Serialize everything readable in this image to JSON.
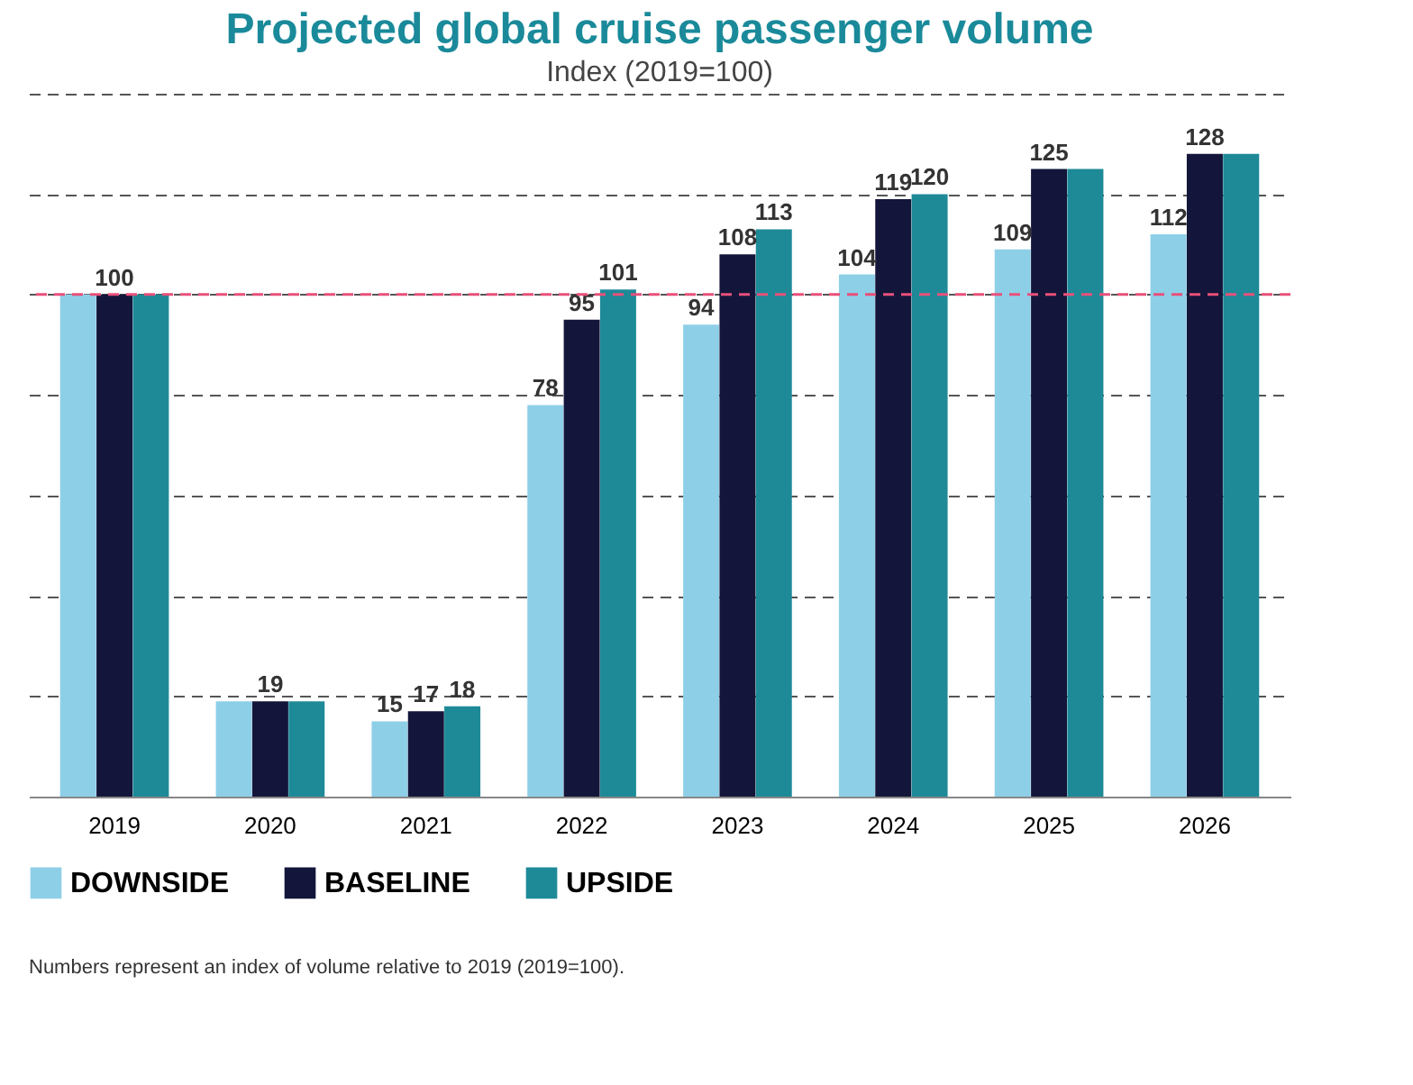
{
  "chart_data": {
    "type": "bar",
    "title": "Projected global cruise passenger volume",
    "subtitle": "Index (2019=100)",
    "categories": [
      "2019",
      "2020",
      "2021",
      "2022",
      "2023",
      "2024",
      "2025",
      "2026"
    ],
    "series": [
      {
        "name": "DOWNSIDE",
        "color": "#8ecfe8",
        "values": [
          100,
          19,
          15,
          78,
          94,
          104,
          109,
          112
        ],
        "value_labels": [
          null,
          null,
          "15",
          "78",
          "94",
          "104",
          "109",
          "112"
        ]
      },
      {
        "name": "BASELINE",
        "color": "#13163a",
        "values": [
          100,
          19,
          17,
          95,
          108,
          119,
          125,
          128
        ],
        "value_labels": [
          "100",
          "19",
          "17",
          "95",
          "108",
          "119",
          "125",
          "128"
        ]
      },
      {
        "name": "UPSIDE",
        "color": "#1e8a98",
        "values": [
          100,
          19,
          18,
          101,
          113,
          120,
          125,
          128
        ],
        "value_labels": [
          null,
          null,
          "18",
          "101",
          "113",
          "120",
          null,
          null
        ]
      }
    ],
    "ylim": [
      0,
      140
    ],
    "yticks": [
      {
        "value": 0,
        "label": null
      },
      {
        "value": 20,
        "label": null
      },
      {
        "value": 40,
        "label": null
      },
      {
        "value": 60,
        "label": null
      },
      {
        "value": 80,
        "label": null
      },
      {
        "value": 100,
        "label": null
      },
      {
        "value": 120,
        "label": null
      },
      {
        "value": 140,
        "label": null
      }
    ],
    "ref_lines": [
      {
        "axis": "y",
        "value": 100,
        "label": null,
        "color": "#e8507a",
        "line_style": "dashed"
      }
    ],
    "grid": "y",
    "legend": "bottom",
    "tick_labels": "x",
    "annotations": [
      "Numbers represent an index of volume relative to 2019 (2019=100)."
    ]
  }
}
